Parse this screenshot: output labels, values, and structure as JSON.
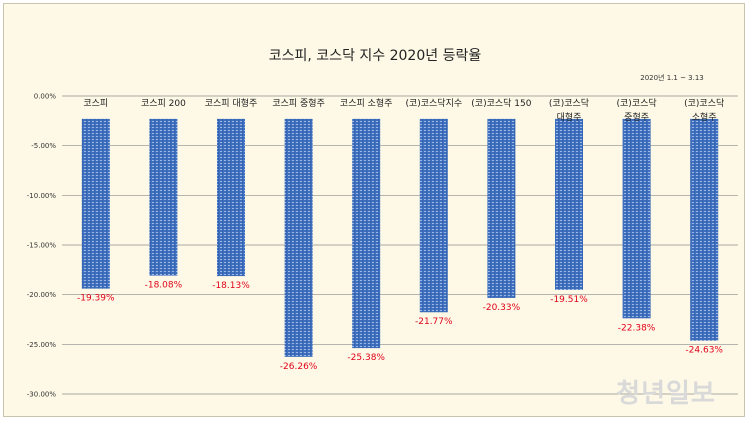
{
  "chart_data": {
    "type": "bar",
    "title": "코스피, 코스닥 지수 2020년 등락율",
    "subtitle": "2020년 1.1  ~ 3.13",
    "categories": [
      [
        "코스피"
      ],
      [
        "코스피 200"
      ],
      [
        "코스피 대형주"
      ],
      [
        "코스피 중형주"
      ],
      [
        "코스피 소형주"
      ],
      [
        "(코)코스닥지수"
      ],
      [
        "(코)코스닥 150"
      ],
      [
        "(코)코스닥",
        "대형주"
      ],
      [
        "(코)코스닥",
        "중형주"
      ],
      [
        "(코)코스닥",
        "소형주"
      ]
    ],
    "values": [
      -19.39,
      -18.08,
      -18.13,
      -26.26,
      -25.38,
      -21.77,
      -20.33,
      -19.51,
      -22.38,
      -24.63
    ],
    "value_labels": [
      "-19.39%",
      "-18.08%",
      "-18.13%",
      "-26.26%",
      "-25.38%",
      "-21.77%",
      "-20.33%",
      "-19.51%",
      "-22.38%",
      "-24.63%"
    ],
    "ylim": [
      -30,
      0
    ],
    "yticks": [
      0,
      -5,
      -10,
      -15,
      -20,
      -25,
      -30
    ],
    "ytick_labels": [
      "0.00%",
      "-5.00%",
      "-10.00%",
      "-15.00%",
      "-20.00%",
      "-25.00%",
      "-30.00%"
    ],
    "grid": true,
    "bar_color": "#3f6fbf",
    "label_color": "#e0001a"
  },
  "watermark": "청년일보"
}
